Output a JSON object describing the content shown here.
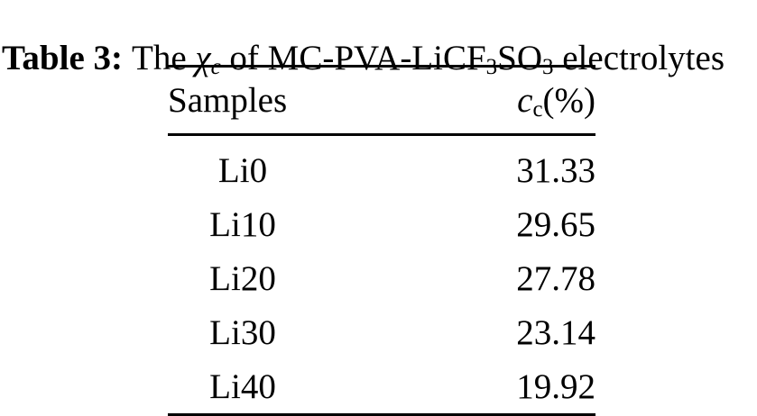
{
  "caption": {
    "label": "Table 3:",
    "text_pre": "The",
    "chi_symbol": "χ",
    "chi_sub": "c",
    "text_mid": "of MC-PVA-LiCF",
    "licf_sub": "3",
    "so_text": "SO",
    "so_sub": "3",
    "text_post": "electrolytes"
  },
  "table": {
    "header": {
      "samples": "Samples",
      "value_symbol": "c",
      "value_symbol_sub": "c",
      "value_unit": "(%)"
    },
    "rows": [
      {
        "sample": "Li0",
        "value": "31.33"
      },
      {
        "sample": "Li10",
        "value": "29.65"
      },
      {
        "sample": "Li20",
        "value": "27.78"
      },
      {
        "sample": "Li30",
        "value": "23.14"
      },
      {
        "sample": "Li40",
        "value": "19.92"
      }
    ]
  },
  "chart_data": {
    "type": "table",
    "title": "Table 3: The χc of MC-PVA-LiCF3SO3 electrolytes",
    "columns": [
      "Samples",
      "cc(%)"
    ],
    "categories": [
      "Li0",
      "Li10",
      "Li20",
      "Li30",
      "Li40"
    ],
    "values": [
      31.33,
      29.65,
      27.78,
      23.14,
      19.92
    ]
  },
  "colors": {
    "text": "#000000",
    "background": "#ffffff",
    "rule": "#000000"
  }
}
